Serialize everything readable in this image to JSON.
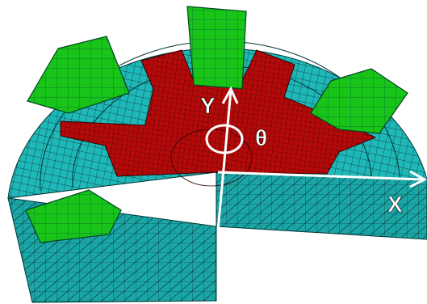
{
  "labels": {
    "y_axis": "Y",
    "theta": "θ",
    "x_axis": "X"
  }
}
